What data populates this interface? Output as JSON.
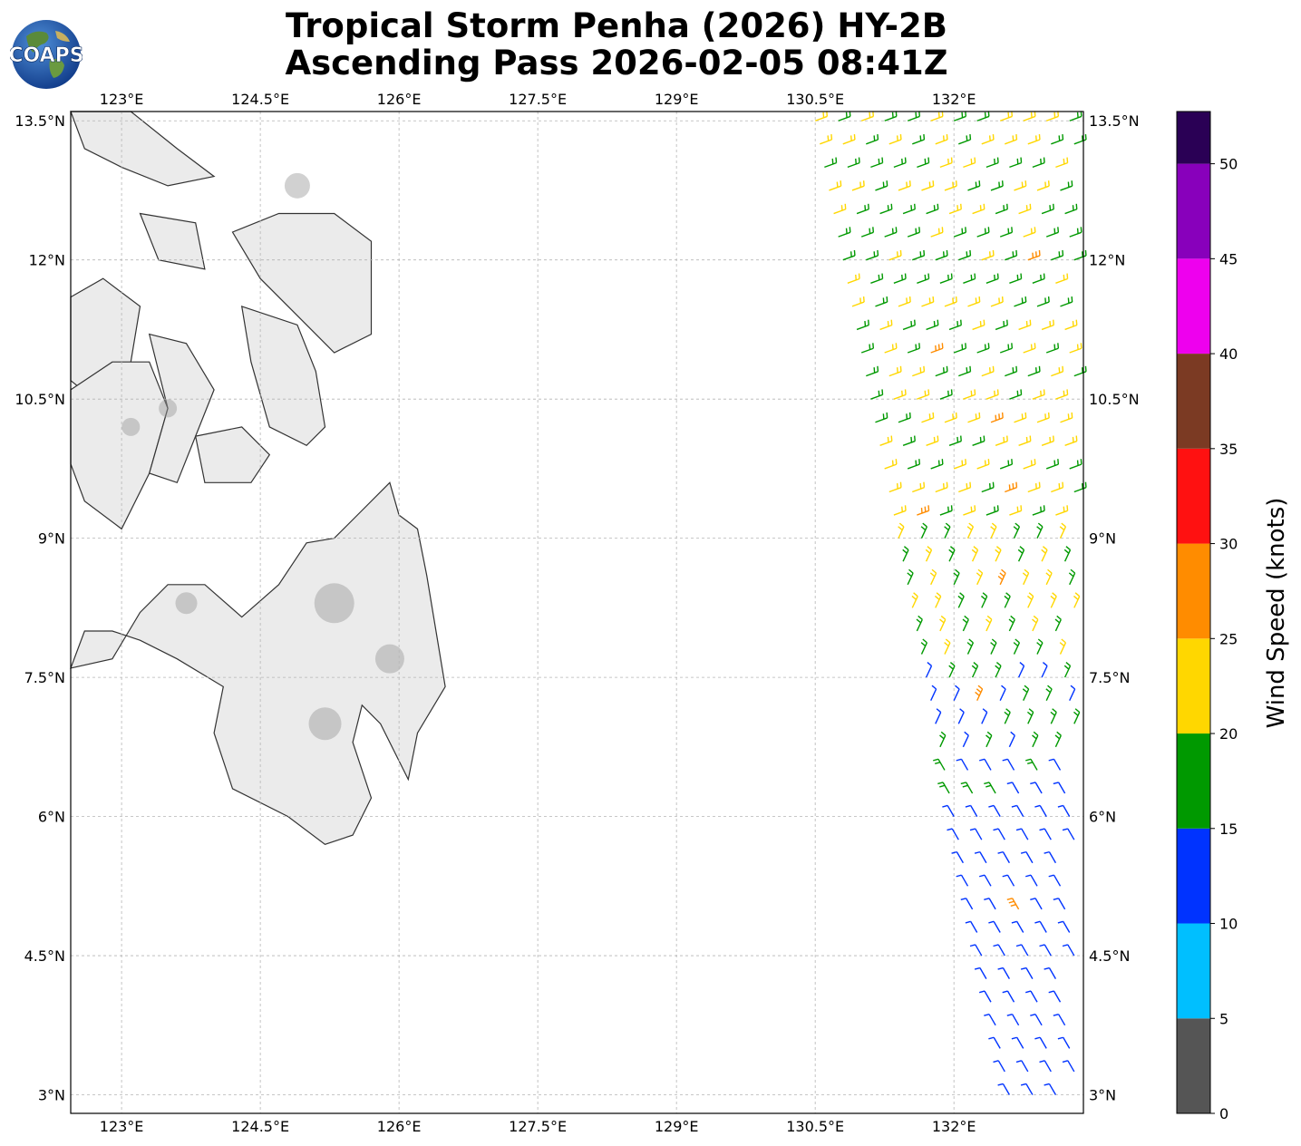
{
  "title": {
    "line1": "Tropical Storm Penha (2026) HY-2B",
    "line2": "Ascending Pass 2026-02-05 08:41Z"
  },
  "logo": {
    "text": "COAPS",
    "icon": "globe-logo-icon"
  },
  "map": {
    "lon_range": [
      122.45,
      133.4
    ],
    "lat_range": [
      2.8,
      13.6
    ],
    "lon_ticks": [
      "123°E",
      "124.5°E",
      "126°E",
      "127.5°E",
      "129°E",
      "130.5°E",
      "132°E"
    ],
    "lat_ticks": [
      "13.5°N",
      "12°N",
      "10.5°N",
      "9°N",
      "7.5°N",
      "6°N",
      "4.5°N",
      "3°N"
    ],
    "grid": true,
    "land_shading": "grayscale terrain",
    "coastline_color": "#333333"
  },
  "colorbar": {
    "label": "Wind Speed (knots)",
    "ticks": [
      "0",
      "5",
      "10",
      "15",
      "20",
      "25",
      "30",
      "35",
      "40",
      "45",
      "50"
    ],
    "colors": [
      "#555555",
      "#00bfff",
      "#0033ff",
      "#009900",
      "#ffd700",
      "#ff8c00",
      "#ff1111",
      "#7b3a23",
      "#ee00ee",
      "#8800bb",
      "#2a0055"
    ]
  },
  "chart_data": {
    "type": "wind-barbs",
    "swath": "right edge of map, ~130.5°E–133.3°E, 2.8°N–13.6°N",
    "speed_bands_by_latitude": [
      {
        "lat_range": [
          12.0,
          13.6
        ],
        "speeds_kt": "15-25",
        "dominant_color": "green/yellow"
      },
      {
        "lat_range": [
          10.5,
          12.0
        ],
        "speeds_kt": "15-25",
        "dominant_color": "green/yellow"
      },
      {
        "lat_range": [
          7.5,
          10.5
        ],
        "speeds_kt": "15-25",
        "dominant_color": "green/yellow"
      },
      {
        "lat_range": [
          6.0,
          7.5
        ],
        "speeds_kt": "10-20",
        "dominant_color": "blue/green"
      },
      {
        "lat_range": [
          2.8,
          6.0
        ],
        "speeds_kt": "10-15",
        "dominant_color": "blue"
      }
    ]
  }
}
